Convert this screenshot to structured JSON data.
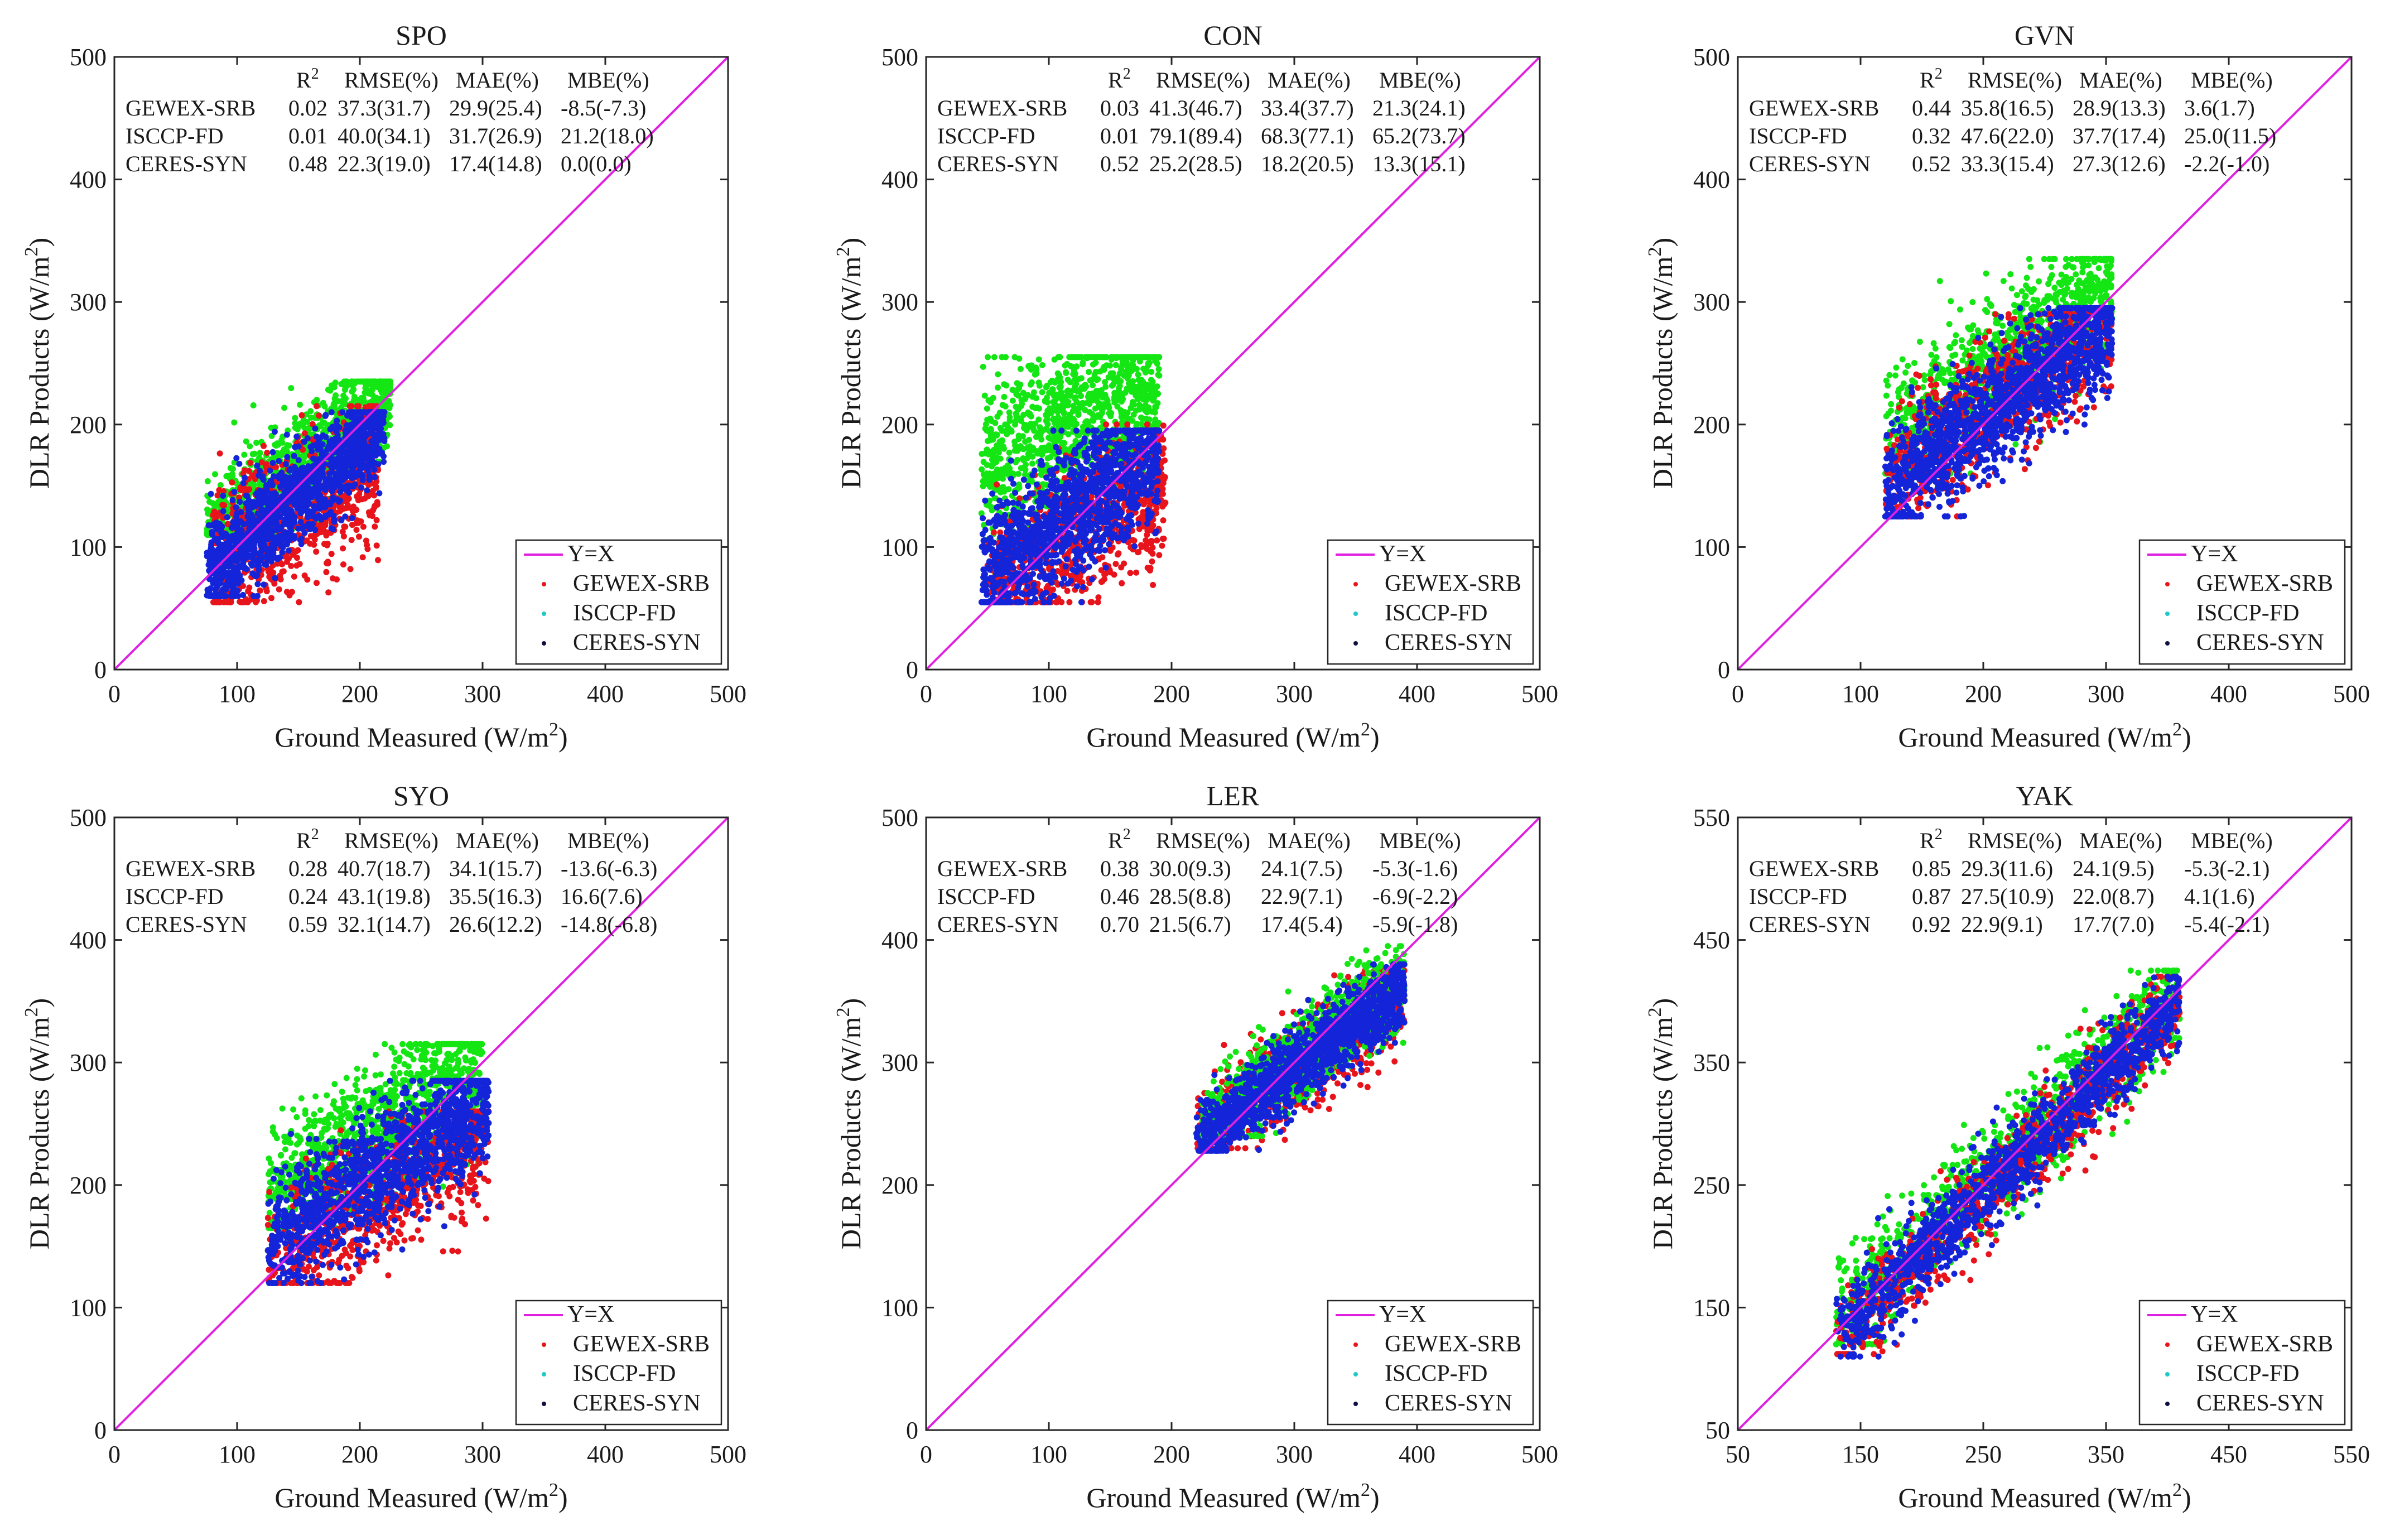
{
  "chart_data": [
    {
      "type": "scatter",
      "title": "SPO",
      "xlabel": "Ground Measured (W/m",
      "ylabel": "DLR Products (W/m",
      "xlim": [
        0,
        500
      ],
      "ylim": [
        0,
        500
      ],
      "xticks": [
        "0",
        "100",
        "200",
        "300",
        "400",
        "500"
      ],
      "yticks": [
        "0",
        "100",
        "200",
        "300",
        "400",
        "500"
      ],
      "stats_header": [
        "RMSE(%)",
        "MAE(%)",
        "MBE(%)"
      ],
      "stats": [
        {
          "product": "GEWEX-SRB",
          "r2": "0.02",
          "rmse": "37.3(31.7)",
          "mae": "29.9(25.4)",
          "mbe": "-8.5(-7.3)"
        },
        {
          "product": "ISCCP-FD",
          "r2": "0.01",
          "rmse": "40.0(34.1)",
          "mae": "31.7(26.9)",
          "mbe": "21.2(18.0)"
        },
        {
          "product": "CERES-SYN",
          "r2": "0.48",
          "rmse": "22.3(19.0)",
          "mae": "17.4(14.8)",
          "mbe": "0.0(0.0)"
        }
      ],
      "legend": [
        "Y=X",
        "GEWEX-SRB",
        "ISCCP-FD",
        "CERES-SYN"
      ],
      "series": [
        {
          "name": "ISCCP-FD",
          "x_range": [
            75,
            225
          ],
          "y_range": [
            110,
            235
          ],
          "slope": 0.75,
          "intercept": 55,
          "spread": 22,
          "n": 1100
        },
        {
          "name": "GEWEX-SRB",
          "x_range": [
            80,
            215
          ],
          "y_range": [
            55,
            215
          ],
          "slope": 0.65,
          "intercept": 30,
          "spread": 30,
          "n": 800
        },
        {
          "name": "CERES-SYN",
          "x_range": [
            75,
            220
          ],
          "y_range": [
            60,
            210
          ],
          "slope": 0.85,
          "intercept": 15,
          "spread": 20,
          "n": 1400
        }
      ]
    },
    {
      "type": "scatter",
      "title": "CON",
      "xlabel": "Ground Measured (W/m",
      "ylabel": "DLR Products (W/m",
      "xlim": [
        0,
        500
      ],
      "ylim": [
        0,
        500
      ],
      "xticks": [
        "0",
        "100",
        "200",
        "300",
        "400",
        "500"
      ],
      "yticks": [
        "0",
        "100",
        "200",
        "300",
        "400",
        "500"
      ],
      "stats_header": [
        "RMSE(%)",
        "MAE(%)",
        "MBE(%)"
      ],
      "stats": [
        {
          "product": "GEWEX-SRB",
          "r2": "0.03",
          "rmse": "41.3(46.7)",
          "mae": "33.4(37.7)",
          "mbe": "21.3(24.1)"
        },
        {
          "product": "ISCCP-FD",
          "r2": "0.01",
          "rmse": "79.1(89.4)",
          "mae": "68.3(77.1)",
          "mbe": "65.2(73.7)"
        },
        {
          "product": "CERES-SYN",
          "r2": "0.52",
          "rmse": "25.2(28.5)",
          "mae": "18.2(20.5)",
          "mbe": "13.3(15.1)"
        }
      ],
      "legend": [
        "Y=X",
        "GEWEX-SRB",
        "ISCCP-FD",
        "CERES-SYN"
      ],
      "series": [
        {
          "name": "ISCCP-FD",
          "x_range": [
            45,
            190
          ],
          "y_range": [
            70,
            255
          ],
          "slope": 0.5,
          "intercept": 140,
          "spread": 35,
          "n": 1100
        },
        {
          "name": "GEWEX-SRB",
          "x_range": [
            50,
            195
          ],
          "y_range": [
            55,
            200
          ],
          "slope": 0.6,
          "intercept": 35,
          "spread": 30,
          "n": 800
        },
        {
          "name": "CERES-SYN",
          "x_range": [
            45,
            190
          ],
          "y_range": [
            55,
            195
          ],
          "slope": 0.75,
          "intercept": 40,
          "spread": 28,
          "n": 1400
        }
      ]
    },
    {
      "type": "scatter",
      "title": "GVN",
      "xlabel": "Ground Measured (W/m",
      "ylabel": "DLR Products (W/m",
      "xlim": [
        0,
        500
      ],
      "ylim": [
        0,
        500
      ],
      "xticks": [
        "0",
        "100",
        "200",
        "300",
        "400",
        "500"
      ],
      "yticks": [
        "0",
        "100",
        "200",
        "300",
        "400",
        "500"
      ],
      "stats_header": [
        "RMSE(%)",
        "MAE(%)",
        "MBE(%)"
      ],
      "stats": [
        {
          "product": "GEWEX-SRB",
          "r2": "0.44",
          "rmse": "35.8(16.5)",
          "mae": "28.9(13.3)",
          "mbe": "3.6(1.7)"
        },
        {
          "product": "ISCCP-FD",
          "r2": "0.32",
          "rmse": "47.6(22.0)",
          "mae": "37.7(17.4)",
          "mbe": "25.0(11.5)"
        },
        {
          "product": "CERES-SYN",
          "r2": "0.52",
          "rmse": "33.3(15.4)",
          "mae": "27.3(12.6)",
          "mbe": "-2.2(-1.0)"
        }
      ],
      "legend": [
        "Y=X",
        "GEWEX-SRB",
        "ISCCP-FD",
        "CERES-SYN"
      ],
      "series": [
        {
          "name": "ISCCP-FD",
          "x_range": [
            120,
            305
          ],
          "y_range": [
            160,
            335
          ],
          "slope": 0.7,
          "intercept": 100,
          "spread": 28,
          "n": 1100
        },
        {
          "name": "GEWEX-SRB",
          "x_range": [
            120,
            305
          ],
          "y_range": [
            125,
            290
          ],
          "slope": 0.75,
          "intercept": 60,
          "spread": 30,
          "n": 800
        },
        {
          "name": "CERES-SYN",
          "x_range": [
            120,
            305
          ],
          "y_range": [
            125,
            295
          ],
          "slope": 0.75,
          "intercept": 55,
          "spread": 25,
          "n": 1400
        }
      ]
    },
    {
      "type": "scatter",
      "title": "SYO",
      "xlabel": "Ground Measured (W/m",
      "ylabel": "DLR Products (W/m",
      "xlim": [
        0,
        500
      ],
      "ylim": [
        0,
        500
      ],
      "xticks": [
        "0",
        "100",
        "200",
        "300",
        "400",
        "500"
      ],
      "yticks": [
        "0",
        "100",
        "200",
        "300",
        "400",
        "500"
      ],
      "stats_header": [
        "RMSE(%)",
        "MAE(%)",
        "MBE(%)"
      ],
      "stats": [
        {
          "product": "GEWEX-SRB",
          "r2": "0.28",
          "rmse": "40.7(18.7)",
          "mae": "34.1(15.7)",
          "mbe": "-13.6(-6.3)"
        },
        {
          "product": "ISCCP-FD",
          "r2": "0.24",
          "rmse": "43.1(19.8)",
          "mae": "35.5(16.3)",
          "mbe": "16.6(7.6)"
        },
        {
          "product": "CERES-SYN",
          "r2": "0.59",
          "rmse": "32.1(14.7)",
          "mae": "26.6(12.2)",
          "mbe": "-14.8(-6.8)"
        }
      ],
      "legend": [
        "Y=X",
        "GEWEX-SRB",
        "ISCCP-FD",
        "CERES-SYN"
      ],
      "series": [
        {
          "name": "ISCCP-FD",
          "x_range": [
            125,
            300
          ],
          "y_range": [
            165,
            315
          ],
          "slope": 0.6,
          "intercept": 115,
          "spread": 28,
          "n": 1100
        },
        {
          "name": "GEWEX-SRB",
          "x_range": [
            125,
            305
          ],
          "y_range": [
            120,
            260
          ],
          "slope": 0.6,
          "intercept": 60,
          "spread": 28,
          "n": 800
        },
        {
          "name": "CERES-SYN",
          "x_range": [
            125,
            305
          ],
          "y_range": [
            120,
            285
          ],
          "slope": 0.65,
          "intercept": 70,
          "spread": 25,
          "n": 1400
        }
      ]
    },
    {
      "type": "scatter",
      "title": "LER",
      "xlabel": "Ground Measured (W/m",
      "ylabel": "DLR Products (W/m",
      "xlim": [
        0,
        500
      ],
      "ylim": [
        0,
        500
      ],
      "xticks": [
        "0",
        "100",
        "200",
        "300",
        "400",
        "500"
      ],
      "yticks": [
        "0",
        "100",
        "200",
        "300",
        "400",
        "500"
      ],
      "stats_header": [
        "RMSE(%)",
        "MAE(%)",
        "MBE(%)"
      ],
      "stats": [
        {
          "product": "GEWEX-SRB",
          "r2": "0.38",
          "rmse": "30.0(9.3)",
          "mae": "24.1(7.5)",
          "mbe": "-5.3(-1.6)"
        },
        {
          "product": "ISCCP-FD",
          "r2": "0.46",
          "rmse": "28.5(8.8)",
          "mae": "22.9(7.1)",
          "mbe": "-6.9(-2.2)"
        },
        {
          "product": "CERES-SYN",
          "r2": "0.70",
          "rmse": "21.5(6.7)",
          "mae": "17.4(5.4)",
          "mbe": "-5.9(-1.8)"
        }
      ],
      "legend": [
        "Y=X",
        "GEWEX-SRB",
        "ISCCP-FD",
        "CERES-SYN"
      ],
      "series": [
        {
          "name": "GEWEX-SRB",
          "x_range": [
            220,
            390
          ],
          "y_range": [
            230,
            375
          ],
          "slope": 0.7,
          "intercept": 85,
          "spread": 20,
          "n": 800
        },
        {
          "name": "ISCCP-FD",
          "x_range": [
            225,
            390
          ],
          "y_range": [
            240,
            395
          ],
          "slope": 0.75,
          "intercept": 75,
          "spread": 17,
          "n": 1100
        },
        {
          "name": "CERES-SYN",
          "x_range": [
            220,
            390
          ],
          "y_range": [
            228,
            380
          ],
          "slope": 0.75,
          "intercept": 70,
          "spread": 15,
          "n": 1400
        }
      ]
    },
    {
      "type": "scatter",
      "title": "YAK",
      "xlabel": "Ground Measured (W/m",
      "ylabel": "DLR Products (W/m",
      "xlim": [
        50,
        550
      ],
      "ylim": [
        50,
        550
      ],
      "xticks": [
        "50",
        "150",
        "250",
        "350",
        "450",
        "550"
      ],
      "yticks": [
        "50",
        "150",
        "250",
        "350",
        "450",
        "550"
      ],
      "stats_header": [
        "RMSE(%)",
        "MAE(%)",
        "MBE(%)"
      ],
      "stats": [
        {
          "product": "GEWEX-SRB",
          "r2": "0.85",
          "rmse": "29.3(11.6)",
          "mae": "24.1(9.5)",
          "mbe": "-5.3(-2.1)"
        },
        {
          "product": "ISCCP-FD",
          "r2": "0.87",
          "rmse": "27.5(10.9)",
          "mae": "22.0(8.7)",
          "mbe": "4.1(1.6)"
        },
        {
          "product": "CERES-SYN",
          "r2": "0.92",
          "rmse": "22.9(9.1)",
          "mae": "17.7(7.0)",
          "mbe": "-5.4(-2.1)"
        }
      ],
      "legend": [
        "Y=X",
        "GEWEX-SRB",
        "ISCCP-FD",
        "CERES-SYN"
      ],
      "series": [
        {
          "name": "ISCCP-FD",
          "x_range": [
            130,
            410
          ],
          "y_range": [
            120,
            425
          ],
          "slope": 0.95,
          "intercept": 18,
          "spread": 22,
          "n": 1100
        },
        {
          "name": "GEWEX-SRB",
          "x_range": [
            130,
            410
          ],
          "y_range": [
            112,
            420
          ],
          "slope": 1.0,
          "intercept": -10,
          "spread": 20,
          "n": 800
        },
        {
          "name": "CERES-SYN",
          "x_range": [
            130,
            410
          ],
          "y_range": [
            110,
            420
          ],
          "slope": 0.98,
          "intercept": -2,
          "spread": 18,
          "n": 1400
        }
      ]
    }
  ],
  "colors": {
    "GEWEX-SRB": "#e8141c",
    "ISCCP-FD": "#14e614",
    "CERES-SYN": "#1424d8",
    "Y=X": "#e020e0",
    "legend_ISCCP-FD": "#20c8c8",
    "legend_CERES-SYN": "#101040"
  }
}
